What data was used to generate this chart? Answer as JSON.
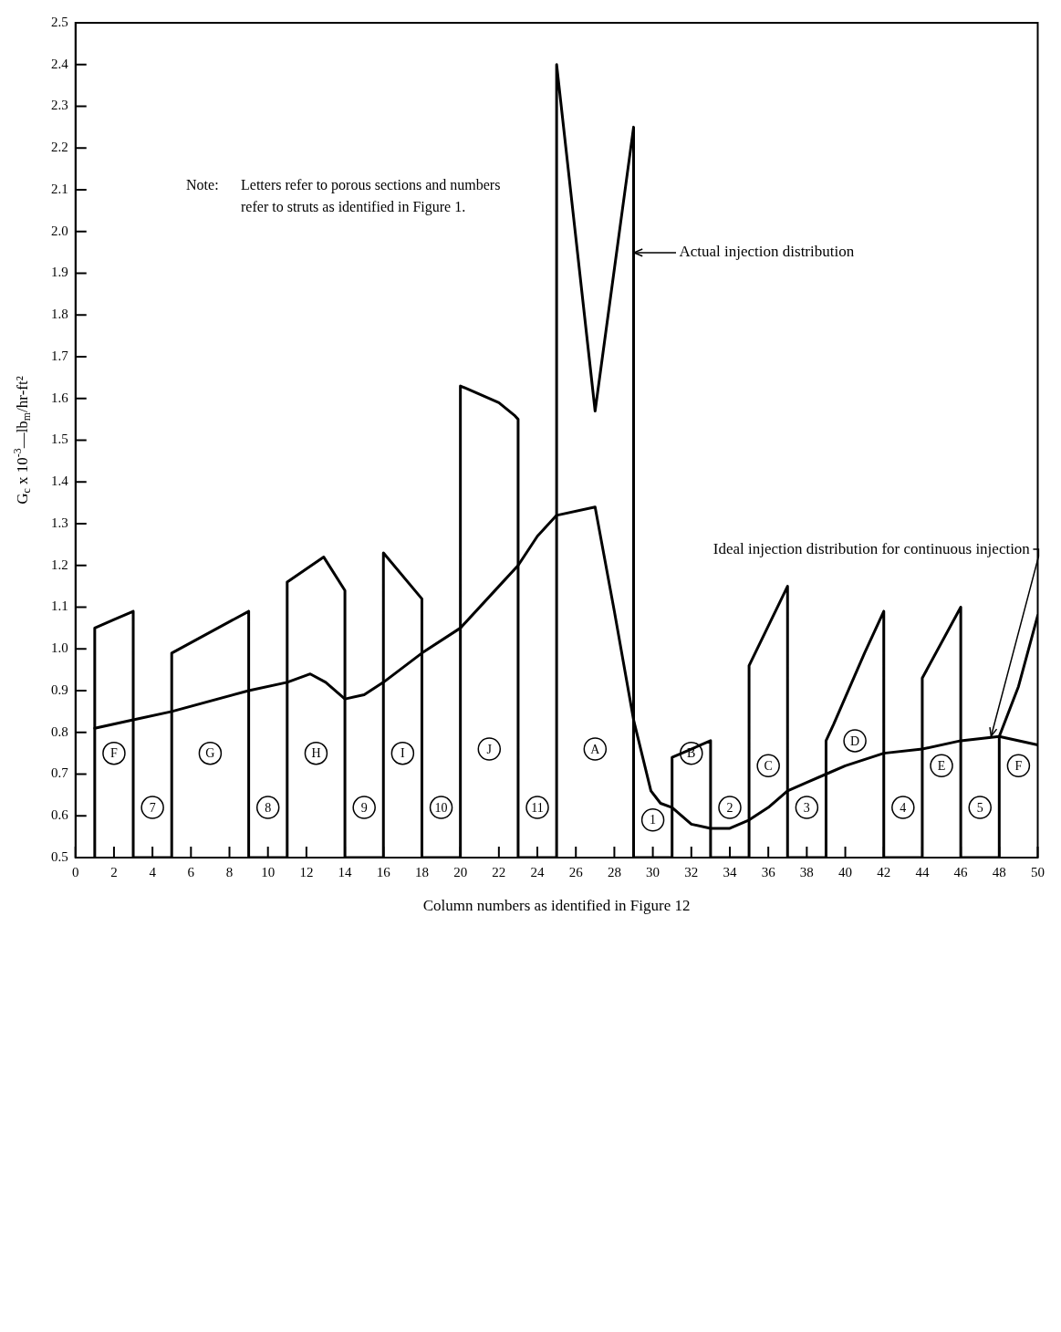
{
  "chart_data": {
    "type": "line",
    "xlabel": "Column numbers as identified in Figure 12",
    "ylabel": "G$_{c}$ x 10$^{-3}$—lb$_{m}$/hr-ft²",
    "xlim": [
      0,
      50
    ],
    "xticks": [
      0,
      2,
      4,
      6,
      8,
      10,
      12,
      14,
      16,
      18,
      20,
      22,
      24,
      26,
      28,
      30,
      32,
      34,
      36,
      38,
      40,
      42,
      44,
      46,
      48,
      50
    ],
    "ylim": [
      0.5,
      2.5
    ],
    "yticks": [
      0.5,
      0.6,
      0.7,
      0.8,
      0.9,
      {
        "value": 1,
        "label": "1.0"
      },
      1.1,
      1.2,
      1.3,
      1.4,
      1.5,
      1.6,
      1.7,
      1.8,
      1.9,
      {
        "value": 2,
        "label": "2.0"
      },
      2.1,
      2.2,
      2.3,
      2.4,
      2.5
    ],
    "grid": false,
    "legend": false,
    "marker": "none",
    "line_style": "solid",
    "series": [
      {
        "color": "#000000",
        "x": [
          1,
          1,
          2,
          3,
          3,
          5,
          5,
          9,
          9,
          11,
          11,
          12.9,
          14,
          14,
          16,
          16,
          18,
          18,
          20,
          20,
          21,
          22,
          22.8,
          23,
          23,
          25,
          25,
          27,
          29,
          29,
          31,
          31,
          32,
          33,
          33,
          35,
          35,
          37,
          37,
          39,
          39,
          39.4,
          41,
          42,
          42,
          44,
          44,
          46,
          46,
          48,
          48,
          49,
          50
        ],
        "values": [
          0.5,
          1.05,
          1.07,
          1.09,
          0.5,
          0.5,
          0.99,
          1.09,
          0.5,
          0.5,
          1.16,
          1.22,
          1.14,
          0.5,
          0.5,
          1.23,
          1.12,
          0.5,
          0.5,
          1.63,
          1.61,
          1.59,
          1.56,
          1.55,
          0.5,
          0.5,
          2.4,
          1.57,
          2.25,
          0.5,
          0.5,
          0.74,
          0.76,
          0.78,
          0.5,
          0.5,
          0.96,
          1.15,
          0.5,
          0.5,
          0.78,
          0.82,
          0.99,
          1.09,
          0.5,
          0.5,
          0.93,
          1.1,
          0.5,
          0.5,
          0.79,
          0.91,
          1.08
        ]
      },
      {
        "color": "#000000",
        "x": [
          1,
          3,
          5,
          9,
          11,
          12.2,
          13,
          14,
          15,
          16,
          18,
          20,
          22,
          23,
          24,
          25,
          27,
          28,
          29,
          29.9,
          30.4,
          31,
          32,
          33,
          34,
          35,
          36,
          37,
          38,
          39,
          40,
          42,
          44,
          46,
          48,
          50
        ],
        "values": [
          0.81,
          0.83,
          0.85,
          0.9,
          0.92,
          0.94,
          0.92,
          0.88,
          0.89,
          0.92,
          0.99,
          1.05,
          1.15,
          1.2,
          1.27,
          1.32,
          1.34,
          1.09,
          0.83,
          0.66,
          0.63,
          0.62,
          0.58,
          0.57,
          0.57,
          0.59,
          0.62,
          0.66,
          0.68,
          0.7,
          0.72,
          0.75,
          0.76,
          0.78,
          0.79,
          0.77
        ]
      }
    ],
    "annotations": [
      "Note:  Letters refer to porous sections and numbers refer to struts as identified in Figure 1.",
      {
        "text": "Actual injection distribution",
        "x": 29,
        "y": 1.95
      },
      {
        "text": "Ideal injection distribution for continuous injection",
        "x": 47.6,
        "y": 0.79
      },
      {
        "text": "F",
        "x": 2,
        "y": 0.75
      },
      {
        "text": "7",
        "x": 4,
        "y": 0.62
      },
      {
        "text": "G",
        "x": 7,
        "y": 0.75
      },
      {
        "text": "8",
        "x": 10,
        "y": 0.62
      },
      {
        "text": "H",
        "x": 12.5,
        "y": 0.75
      },
      {
        "text": "9",
        "x": 15,
        "y": 0.62
      },
      {
        "text": "I",
        "x": 17,
        "y": 0.75
      },
      {
        "text": "10",
        "x": 19,
        "y": 0.62
      },
      {
        "text": "J",
        "x": 21.5,
        "y": 0.76
      },
      {
        "text": "11",
        "x": 24,
        "y": 0.62
      },
      {
        "text": "A",
        "x": 27,
        "y": 0.76
      },
      {
        "text": "1",
        "x": 30,
        "y": 0.59
      },
      {
        "text": "B",
        "x": 32,
        "y": 0.75
      },
      {
        "text": "2",
        "x": 34,
        "y": 0.62
      },
      {
        "text": "C",
        "x": 36,
        "y": 0.72
      },
      {
        "text": "3",
        "x": 38,
        "y": 0.62
      },
      {
        "text": "D",
        "x": 40.5,
        "y": 0.78
      },
      {
        "text": "4",
        "x": 43,
        "y": 0.62
      },
      {
        "text": "E",
        "x": 45,
        "y": 0.72
      },
      {
        "text": "5",
        "x": 47,
        "y": 0.62
      },
      {
        "text": "F",
        "x": 49,
        "y": 0.72
      }
    ]
  }
}
